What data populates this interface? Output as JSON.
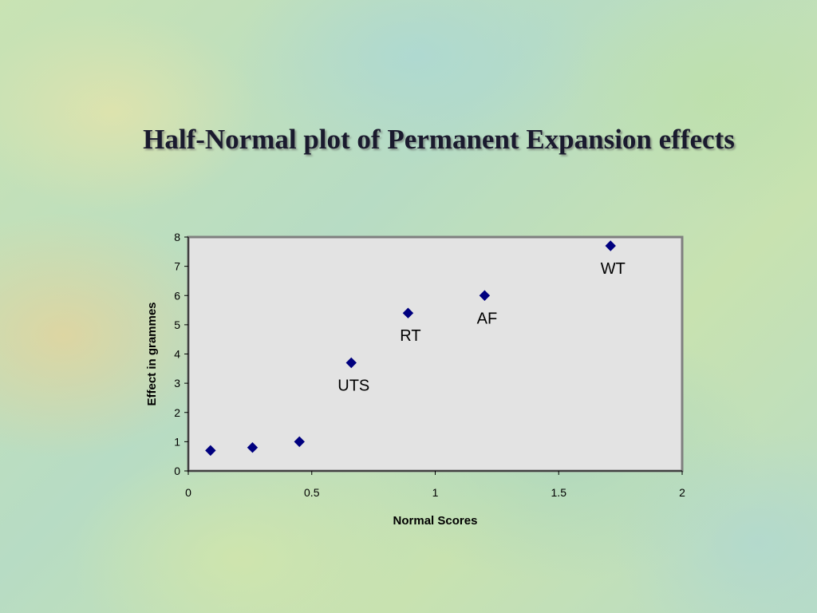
{
  "slide": {
    "title": "Half-Normal plot of Permanent Expansion effects"
  },
  "colors": {
    "marker": "#00007f",
    "plot_area": "#e3e3e3",
    "plot_border": "#7f7f7f"
  },
  "chart_data": {
    "type": "scatter",
    "title": "",
    "xlabel": "Normal Scores",
    "ylabel": "Effect in grammes",
    "xlim": [
      0,
      2
    ],
    "ylim": [
      0,
      8
    ],
    "xticks": [
      "0",
      "0.5",
      "1",
      "1.5",
      "2"
    ],
    "yticks": [
      "0",
      "1",
      "2",
      "3",
      "4",
      "5",
      "6",
      "7",
      "8"
    ],
    "grid": false,
    "legend": "none",
    "series": [
      {
        "marker": "diamond",
        "x": [
          0.09,
          0.26,
          0.45,
          0.66,
          0.89,
          1.2,
          1.71
        ],
        "y": [
          0.7,
          0.8,
          1.0,
          3.7,
          5.4,
          6.0,
          7.7
        ]
      }
    ],
    "annotations": [
      {
        "text": "UTS",
        "x": 0.66,
        "y": 3.7
      },
      {
        "text": "RT",
        "x": 0.89,
        "y": 5.4
      },
      {
        "text": "AF",
        "x": 1.2,
        "y": 6.0
      },
      {
        "text": "WT",
        "x": 1.71,
        "y": 7.7
      }
    ]
  }
}
